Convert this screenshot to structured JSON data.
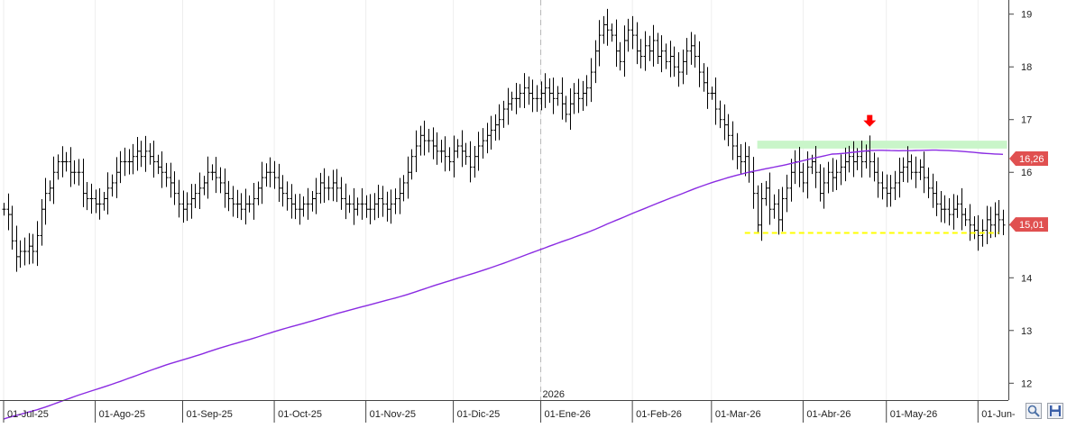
{
  "chart_data": {
    "type": "ohlc",
    "title": "",
    "xlabel": "",
    "ylabel": "",
    "ylim": [
      11.8,
      19.2
    ],
    "y_ticks": [
      12,
      13,
      14,
      15,
      16,
      17,
      18,
      19
    ],
    "x_labels": [
      "01-Jul-25",
      "01-Ago-25",
      "01-Sep-25",
      "01-Oct-25",
      "01-Nov-25",
      "01-Dic-25",
      "01-Ene-26",
      "01-Feb-26",
      "01-Mar-26",
      "01-Abr-26",
      "01-May-26",
      "01-Jun-"
    ],
    "x_label_positions": [
      0,
      22,
      43,
      65,
      87,
      108,
      129,
      151,
      170,
      192,
      212,
      234
    ],
    "year_marker": {
      "label": "2026",
      "index": 129
    },
    "price_label": "15,01",
    "ma_label": "16,26",
    "price_color": "#000000",
    "moving_average_color": "#8a2be2",
    "resistance_zone": {
      "from_index": 181,
      "to_index": 241,
      "low": 16.45,
      "high": 16.6,
      "color": "#c9f5c9"
    },
    "support_line": {
      "from_index": 178,
      "to_index": 239,
      "value": 14.85,
      "color": "#ffff00"
    },
    "arrow_marker": {
      "index": 208,
      "value": 16.95,
      "color": "#ff0000"
    },
    "price_closes": [
      15.3,
      15.2,
      14.7,
      14.4,
      14.5,
      14.5,
      14.6,
      14.5,
      14.8,
      15.3,
      15.6,
      15.7,
      16.0,
      16.2,
      16.2,
      16.2,
      16.0,
      16.0,
      16.0,
      15.6,
      15.5,
      15.5,
      15.4,
      15.4,
      15.5,
      15.7,
      15.8,
      16.0,
      16.2,
      16.2,
      16.2,
      16.3,
      16.4,
      16.3,
      16.4,
      16.3,
      16.2,
      16.1,
      16.0,
      15.9,
      15.8,
      15.6,
      15.4,
      15.3,
      15.4,
      15.5,
      15.6,
      15.7,
      15.8,
      16.0,
      16.0,
      15.9,
      15.8,
      15.6,
      15.5,
      15.4,
      15.4,
      15.3,
      15.4,
      15.4,
      15.5,
      15.7,
      15.9,
      16.0,
      16.0,
      15.9,
      15.7,
      15.6,
      15.5,
      15.4,
      15.3,
      15.3,
      15.4,
      15.4,
      15.5,
      15.6,
      15.8,
      15.7,
      15.7,
      15.8,
      15.7,
      15.5,
      15.4,
      15.4,
      15.3,
      15.4,
      15.4,
      15.3,
      15.3,
      15.4,
      15.5,
      15.4,
      15.3,
      15.4,
      15.5,
      15.6,
      15.8,
      16.0,
      16.3,
      16.5,
      16.7,
      16.6,
      16.6,
      16.5,
      16.4,
      16.4,
      16.3,
      16.2,
      16.4,
      16.5,
      16.4,
      16.3,
      16.1,
      16.3,
      16.5,
      16.6,
      16.7,
      16.8,
      16.9,
      17.0,
      17.2,
      17.3,
      17.4,
      17.4,
      17.5,
      17.6,
      17.5,
      17.4,
      17.4,
      17.5,
      17.6,
      17.5,
      17.4,
      17.5,
      17.3,
      17.1,
      17.3,
      17.5,
      17.4,
      17.5,
      17.6,
      17.9,
      18.3,
      18.6,
      18.8,
      18.7,
      18.6,
      18.3,
      18.1,
      18.5,
      18.7,
      18.6,
      18.3,
      18.2,
      18.4,
      18.3,
      18.5,
      18.2,
      18.3,
      18.1,
      18.2,
      18.0,
      17.9,
      18.1,
      18.3,
      18.4,
      18.2,
      17.9,
      17.7,
      17.5,
      17.5,
      17.2,
      17.0,
      16.9,
      16.7,
      16.5,
      16.3,
      16.2,
      16.3,
      16.0,
      15.6,
      15.0,
      15.5,
      15.7,
      15.3,
      15.4,
      15.1,
      15.5,
      15.7,
      16.0,
      16.2,
      16.0,
      15.8,
      16.1,
      16.2,
      16.0,
      15.6,
      15.8,
      16.0,
      15.9,
      16.0,
      16.1,
      16.2,
      16.3,
      16.2,
      16.3,
      16.2,
      16.4,
      16.2,
      16.0,
      15.8,
      15.7,
      15.6,
      15.7,
      15.8,
      16.0,
      16.1,
      16.2,
      16.0,
      16.0,
      16.1,
      15.9,
      15.7,
      15.6,
      15.4,
      15.3,
      15.3,
      15.2,
      15.3,
      15.4,
      15.2,
      15.1,
      15.0,
      14.9,
      14.8,
      14.9,
      15.1,
      15.0,
      15.2,
      15.1,
      15.0
    ]
  },
  "toolbar": {
    "zoom_icon": "magnifier-icon",
    "save_icon": "floppy-disk-icon"
  }
}
